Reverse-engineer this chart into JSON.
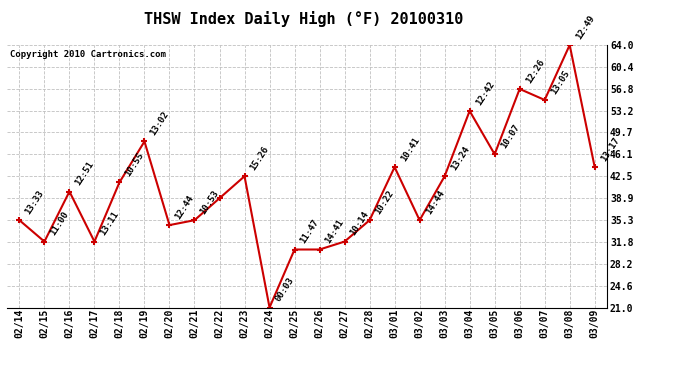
{
  "title": "THSW Index Daily High (°F) 20100310",
  "copyright": "Copyright 2010 Cartronics.com",
  "x_labels": [
    "02/14",
    "02/15",
    "02/16",
    "02/17",
    "02/18",
    "02/19",
    "02/20",
    "02/21",
    "02/22",
    "02/23",
    "02/24",
    "02/25",
    "02/26",
    "02/27",
    "02/28",
    "03/01",
    "03/02",
    "03/03",
    "03/04",
    "03/05",
    "03/06",
    "03/07",
    "03/08",
    "03/09"
  ],
  "y_values": [
    35.3,
    31.8,
    40.0,
    31.8,
    41.5,
    48.2,
    34.5,
    35.3,
    38.9,
    42.5,
    21.0,
    30.5,
    30.5,
    31.8,
    35.3,
    44.0,
    35.3,
    42.5,
    53.2,
    46.1,
    56.8,
    55.0,
    64.0,
    44.0
  ],
  "time_labels": [
    "13:33",
    "11:00",
    "12:51",
    "13:11",
    "10:55",
    "13:02",
    "12:44",
    "10:53",
    "",
    "15:26",
    "00:03",
    "11:47",
    "14:41",
    "10:14",
    "10:22",
    "10:41",
    "14:44",
    "13:24",
    "12:42",
    "10:07",
    "12:26",
    "13:05",
    "12:49",
    "13:17"
  ],
  "y_min": 21.0,
  "y_max": 64.0,
  "y_ticks": [
    21.0,
    24.6,
    28.2,
    31.8,
    35.3,
    38.9,
    42.5,
    46.1,
    49.7,
    53.2,
    56.8,
    60.4,
    64.0
  ],
  "line_color": "#cc0000",
  "marker_color": "#cc0000",
  "bg_color": "#ffffff",
  "grid_color": "#c0c0c0",
  "title_fontsize": 11,
  "copyright_fontsize": 6.5,
  "tick_fontsize": 7,
  "label_fontsize": 6.5
}
